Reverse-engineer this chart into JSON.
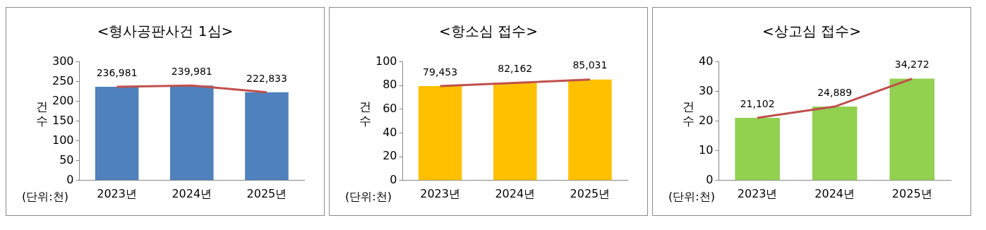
{
  "chart_data": [
    {
      "type": "bar",
      "title": "<형사공판사건 1심>",
      "ylabel": "건수",
      "categories": [
        "2023년",
        "2024년",
        "2025년"
      ],
      "annotations": [
        "(단위:천)",
        {
          "text": "236,981",
          "x": "2023년",
          "y": 236.981
        },
        {
          "text": "239,981",
          "x": "2024년",
          "y": 239.981
        },
        {
          "text": "222,833",
          "x": "2025년",
          "y": 222.833
        }
      ],
      "series": [
        {
          "color": "#4f81bd",
          "values": [
            237,
            240,
            223
          ]
        },
        {
          "type": "line",
          "color": "#c0504d",
          "values": [
            237,
            240,
            223
          ]
        }
      ],
      "ylim": [
        0,
        300
      ],
      "yticks": [
        0,
        50,
        100,
        150,
        200,
        250,
        300
      ],
      "grid": false,
      "legend": false,
      "marker": "none",
      "line_style": "solid"
    },
    {
      "type": "bar",
      "title": "<항소심 접수>",
      "ylabel": "건수",
      "categories": [
        "2023년",
        "2024년",
        "2025년"
      ],
      "annotations": [
        "(단위:천)",
        {
          "text": "79,453",
          "x": "2023년",
          "y": 79.453
        },
        {
          "text": "82,162",
          "x": "2024년",
          "y": 82.162
        },
        {
          "text": "85,031",
          "x": "2025년",
          "y": 85.031
        }
      ],
      "series": [
        {
          "color": "#ffc000",
          "values": [
            79.5,
            82.2,
            85
          ]
        },
        {
          "type": "line",
          "color": "#c0504d",
          "values": [
            79.5,
            82.2,
            85
          ]
        }
      ],
      "ylim": [
        0,
        100
      ],
      "yticks": [
        0,
        20,
        40,
        60,
        80,
        100
      ],
      "grid": false,
      "legend": false,
      "marker": "none",
      "line_style": "solid"
    },
    {
      "type": "bar",
      "title": "<상고심 접수>",
      "ylabel": "건수",
      "categories": [
        "2023년",
        "2024년",
        "2025년"
      ],
      "annotations": [
        "(단위:천)",
        {
          "text": "21,102",
          "x": "2023년",
          "y": 21.102
        },
        {
          "text": "24,889",
          "x": "2024년",
          "y": 24.889
        },
        {
          "text": "34,272",
          "x": "2025년",
          "y": 34.272
        }
      ],
      "series": [
        {
          "color": "#92d050",
          "values": [
            21.1,
            24.9,
            34.3
          ]
        },
        {
          "type": "line",
          "color": "#c0504d",
          "values": [
            21.1,
            24.9,
            34.3
          ]
        }
      ],
      "ylim": [
        0,
        40
      ],
      "yticks": [
        0,
        10,
        20,
        30,
        40
      ],
      "grid": false,
      "legend": false,
      "marker": "none",
      "line_style": "solid"
    }
  ]
}
